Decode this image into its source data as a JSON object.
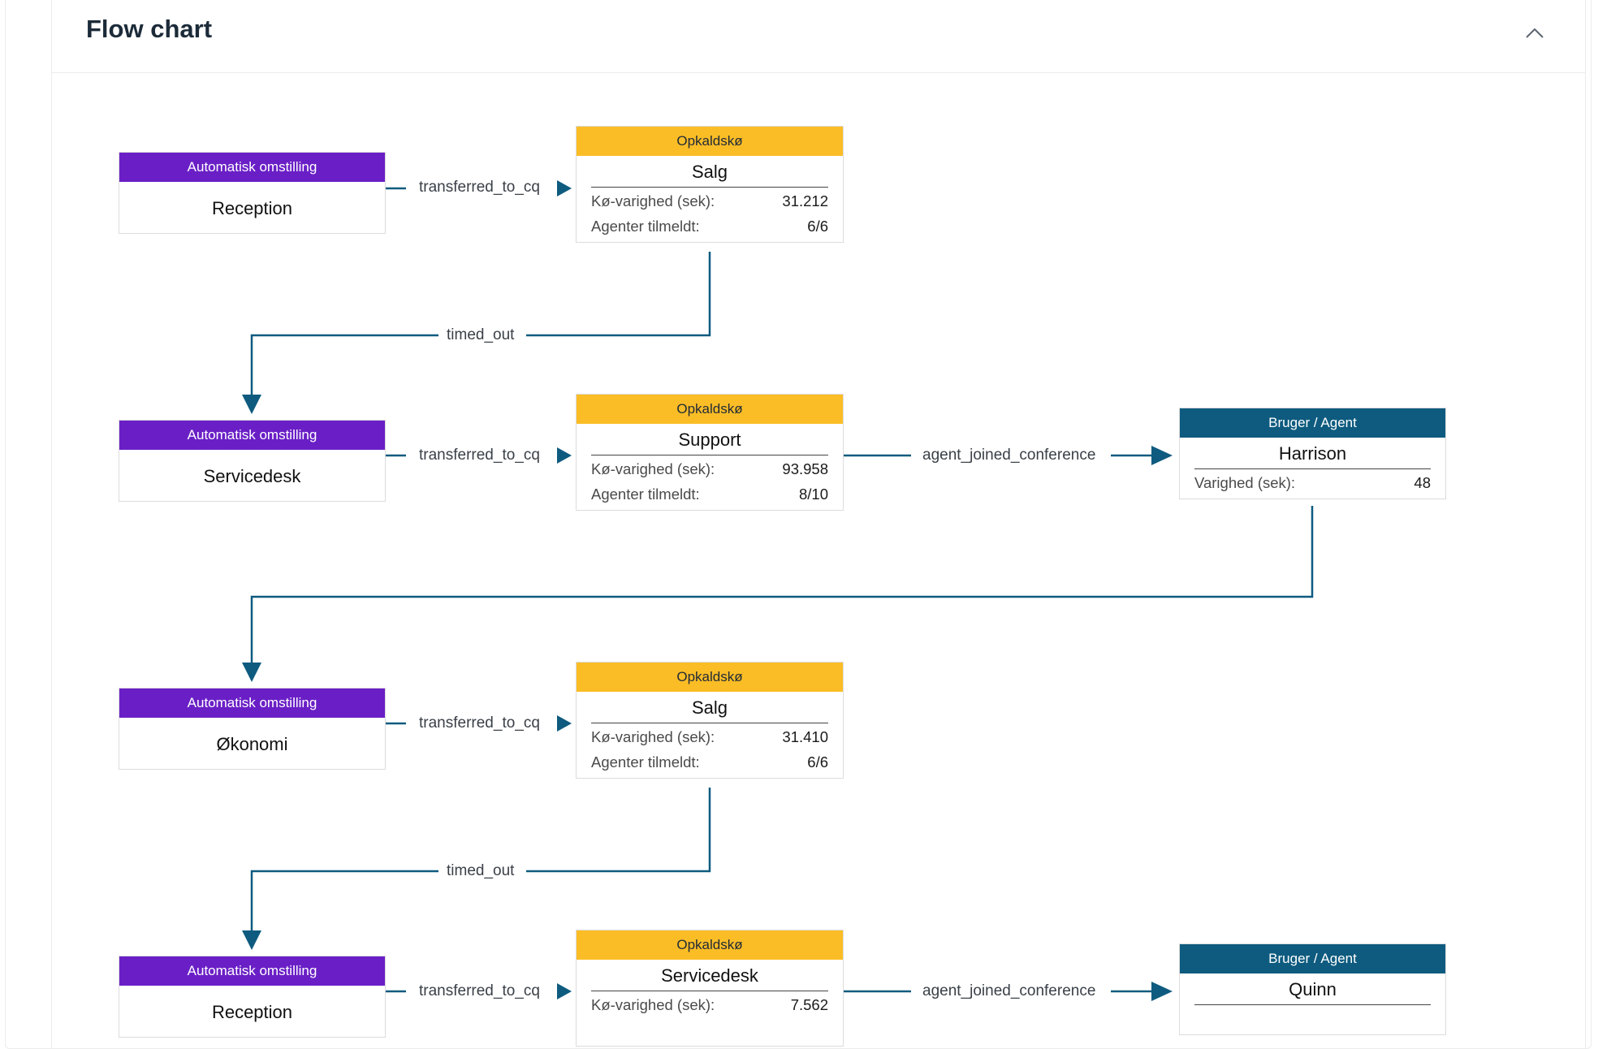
{
  "header": {
    "title": "Flow chart"
  },
  "icons": {
    "collapse": "chevron-up-icon"
  },
  "colors": {
    "auto_attendant": "#6a1fc6",
    "call_queue": "#fbbd26",
    "agent": "#0e5b7f",
    "edge": "#0e5b7f"
  },
  "labels": {
    "ao_type": "Automatisk omstilling",
    "queue_type": "Opkaldskø",
    "agent_type": "Bruger / Agent",
    "queue_duration": "Kø-varighed (sek):",
    "agents_signed_in": "Agenter tilmeldt:",
    "duration": "Varighed (sek):"
  },
  "nodes": {
    "ao1": {
      "name": "Reception"
    },
    "q1": {
      "name": "Salg",
      "duration": "31.212",
      "agents": "6/6"
    },
    "ao2": {
      "name": "Servicedesk"
    },
    "q2": {
      "name": "Support",
      "duration": "93.958",
      "agents": "8/10"
    },
    "ag1": {
      "name": "Harrison",
      "duration": "48"
    },
    "ao3": {
      "name": "Økonomi"
    },
    "q3": {
      "name": "Salg",
      "duration": "31.410",
      "agents": "6/6"
    },
    "ao4": {
      "name": "Reception"
    },
    "q4": {
      "name": "Servicedesk",
      "duration": "7.562"
    },
    "ag2": {
      "name": "Quinn"
    }
  },
  "edges": {
    "e1": "transferred_to_cq",
    "e2": "timed_out",
    "e3": "transferred_to_cq",
    "e4": "agent_joined_conference",
    "e5": "transferred_to_cq",
    "e6": "timed_out",
    "e7": "transferred_to_cq",
    "e8": "agent_joined_conference"
  }
}
